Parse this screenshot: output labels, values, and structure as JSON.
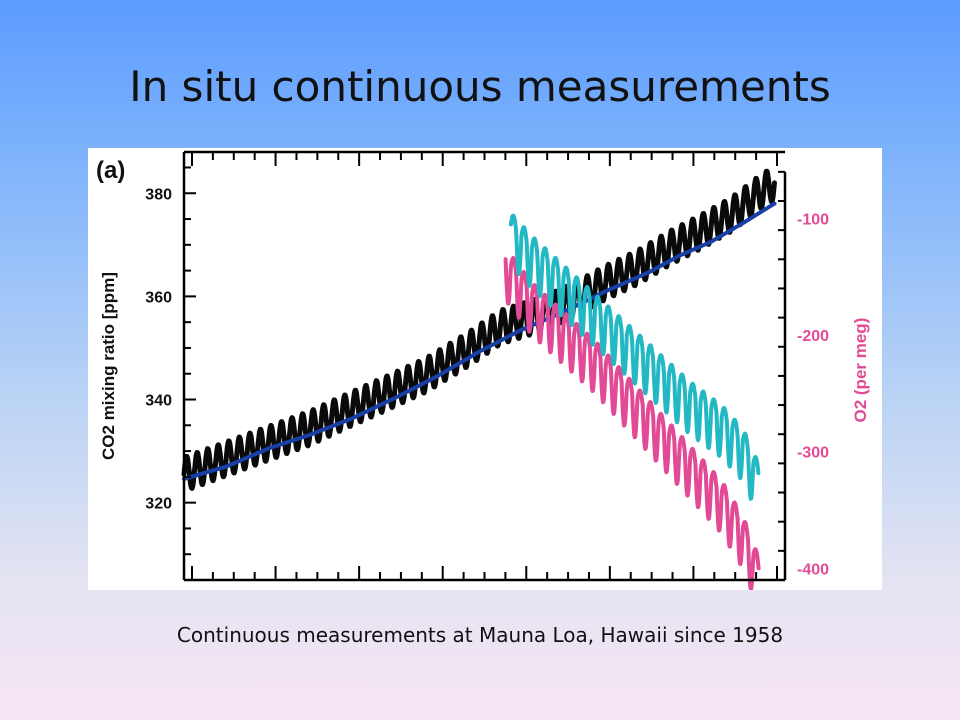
{
  "slide": {
    "title": "In situ continuous measurements",
    "caption": "Continuous measurements at Mauna Loa, Hawaii since 1958"
  },
  "chart_data": {
    "type": "line",
    "panel_label": "(a)",
    "ylabel": "CO2 mixing ratio [ppm]",
    "ylabel_right": "O2 (per meg)",
    "ylim": [
      305,
      388
    ],
    "y_ticks": [
      320,
      340,
      360,
      380
    ],
    "y2lim": [
      -410,
      -43
    ],
    "y2_ticks": [
      -100,
      -200,
      -300,
      -400
    ],
    "x_tick_count": 29,
    "series": [
      {
        "axis": "left",
        "color": "#0a0a0a",
        "style": "seasonal",
        "values": [
          [
            0,
            325.5
          ],
          [
            4,
            328.5
          ],
          [
            8,
            331.5
          ],
          [
            12,
            334.5
          ],
          [
            16,
            338.3
          ],
          [
            19.5,
            341.5
          ],
          [
            23,
            344.8
          ],
          [
            27,
            349.8
          ],
          [
            30,
            354.0
          ],
          [
            34,
            356.6
          ],
          [
            37,
            359.3
          ],
          [
            40,
            362.7
          ],
          [
            43,
            365.6
          ],
          [
            46,
            369.3
          ],
          [
            49,
            372.5
          ],
          [
            52,
            376.0
          ],
          [
            54.5,
            380.0
          ],
          [
            56,
            382.0
          ]
        ]
      },
      {
        "axis": "left",
        "color": "#173fa6",
        "style": "smooth",
        "values": [
          [
            0,
            324.6
          ],
          [
            4,
            327.0
          ],
          [
            8,
            330.5
          ],
          [
            12,
            333.2
          ],
          [
            16,
            336.4
          ],
          [
            20,
            340.3
          ],
          [
            24,
            344.5
          ],
          [
            28,
            349.3
          ],
          [
            32,
            353.5
          ],
          [
            36,
            357.0
          ],
          [
            40,
            361.0
          ],
          [
            44,
            364.6
          ],
          [
            47,
            367.9
          ],
          [
            50,
            370.6
          ],
          [
            53,
            374.2
          ],
          [
            56,
            378.0
          ]
        ]
      },
      {
        "axis": "right",
        "color": "#e24a95",
        "style": "seasonal",
        "values": [
          [
            30.5,
            -135
          ],
          [
            33,
            -165
          ],
          [
            36,
            -190
          ],
          [
            39,
            -215
          ],
          [
            42,
            -245
          ],
          [
            45,
            -275
          ],
          [
            48,
            -305
          ],
          [
            51,
            -335
          ],
          [
            53,
            -365
          ],
          [
            54.5,
            -400
          ]
        ]
      },
      {
        "axis": "right",
        "color": "#23b9c4",
        "style": "seasonal",
        "values": [
          [
            31,
            -105
          ],
          [
            33,
            -125
          ],
          [
            36,
            -150
          ],
          [
            39,
            -175
          ],
          [
            42,
            -200
          ],
          [
            45,
            -225
          ],
          [
            48,
            -250
          ],
          [
            51,
            -270
          ],
          [
            53,
            -290
          ],
          [
            54.5,
            -320
          ]
        ]
      }
    ]
  }
}
